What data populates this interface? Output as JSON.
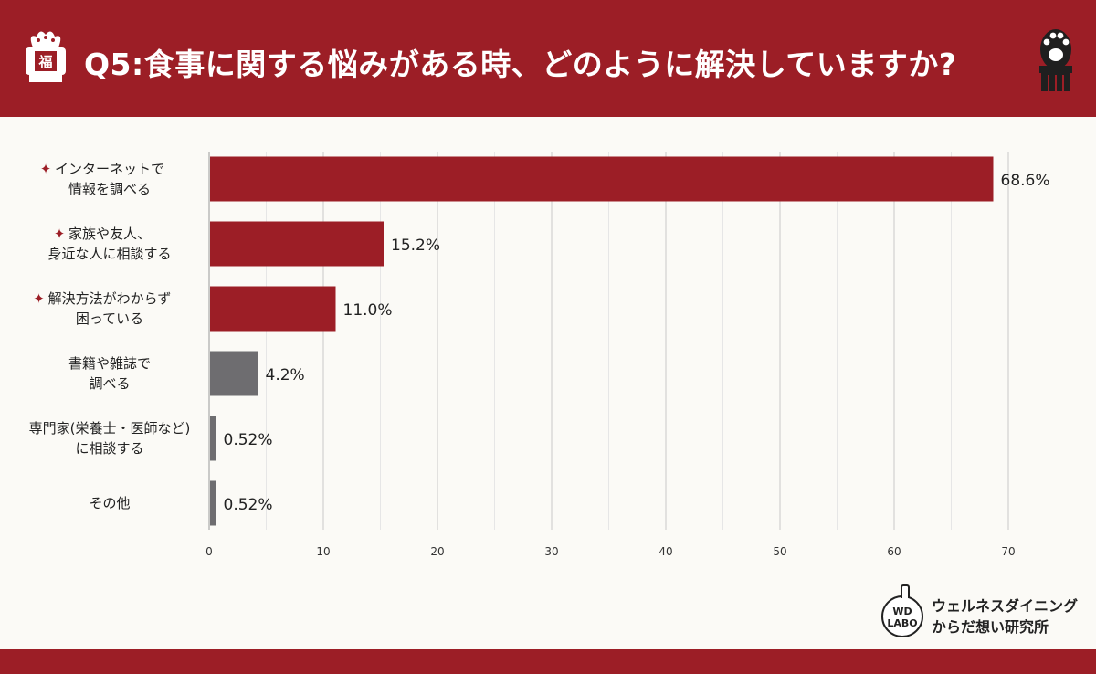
{
  "header": {
    "title": "Q5:食事に関する悩みがある時、どのように解決していますか?",
    "left_icon": "lucky-bag-icon",
    "right_icon": "beckoning-cat-paw-icon",
    "left_icon_char": "福"
  },
  "colors": {
    "brand_red": "#9c1e26",
    "highlight_bar": "#9c1e26",
    "regular_bar": "#6e6d70",
    "grid": "#c8c8c8"
  },
  "brand": {
    "logo_line1": "WD",
    "logo_line2": "LABO",
    "line1": "ウェルネスダイニング",
    "line2": "からだ想い研究所"
  },
  "chart_data": {
    "type": "bar",
    "orientation": "horizontal",
    "categories": [
      [
        "インターネットで",
        "情報を調べる"
      ],
      [
        "家族や友人、",
        "身近な人に相談する"
      ],
      [
        "解決方法がわからず",
        "困っている"
      ],
      [
        "書籍や雑誌で",
        "調べる"
      ],
      [
        "専門家(栄養士・医師など)",
        "に相談する"
      ],
      [
        "その他"
      ]
    ],
    "values": [
      68.6,
      15.2,
      11.0,
      4.2,
      0.52,
      0.52
    ],
    "value_labels": [
      "68.6%",
      "15.2%",
      "11.0%",
      "4.2%",
      "0.52%",
      "0.52%"
    ],
    "highlighted": [
      true,
      true,
      true,
      false,
      false,
      false
    ],
    "highlight_marker": "✦",
    "xlim": [
      0,
      70
    ],
    "xticks": [
      0,
      10,
      20,
      30,
      40,
      50,
      60,
      70
    ],
    "grid": true,
    "xlabel": "",
    "ylabel": ""
  }
}
